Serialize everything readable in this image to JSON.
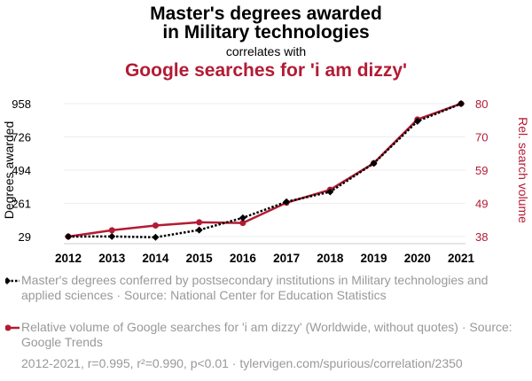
{
  "header": {
    "title_line1": "Master's degrees awarded",
    "title_line2": "in Military technologies",
    "correlates": "correlates with",
    "subtitle": "Google searches for 'i am dizzy'"
  },
  "colors": {
    "series1": "#000000",
    "series2": "#b31b34",
    "grid": "#eeeeee",
    "muted": "#999999"
  },
  "chart_data": {
    "type": "line",
    "x": [
      "2012",
      "2013",
      "2014",
      "2015",
      "2016",
      "2017",
      "2018",
      "2019",
      "2020",
      "2021"
    ],
    "ylabel_left": "Degrees awarded",
    "ylabel_right": "Rel. search volume",
    "left_ticks": [
      "29",
      "261",
      "494",
      "726",
      "958"
    ],
    "right_ticks": [
      "38",
      "49",
      "59",
      "70",
      "80"
    ],
    "ylim_left": [
      29,
      958
    ],
    "ylim_right": [
      38,
      80
    ],
    "grid": true,
    "series": [
      {
        "axis": "left",
        "color": "#000000",
        "style": "dotted",
        "marker": "diamond",
        "values": [
          29,
          30,
          24,
          75,
          160,
          272,
          342,
          541,
          835,
          958
        ]
      },
      {
        "axis": "right",
        "color": "#b31b34",
        "style": "solid",
        "marker": "circle",
        "values": [
          38,
          40,
          41.5,
          42.5,
          42.3,
          48.7,
          52.8,
          61.2,
          75,
          80
        ]
      }
    ]
  },
  "legend": {
    "series1": "Master's degrees conferred by postsecondary institutions in Military technologies and applied sciences · Source: National Center for Education Statistics",
    "series2": "Relative volume of Google searches for 'i am dizzy' (Worldwide, without quotes) · Source: Google Trends"
  },
  "footer": "2012-2021, r=0.995, r²=0.990, p<0.01 · tylervigen.com/spurious/correlation/2350"
}
